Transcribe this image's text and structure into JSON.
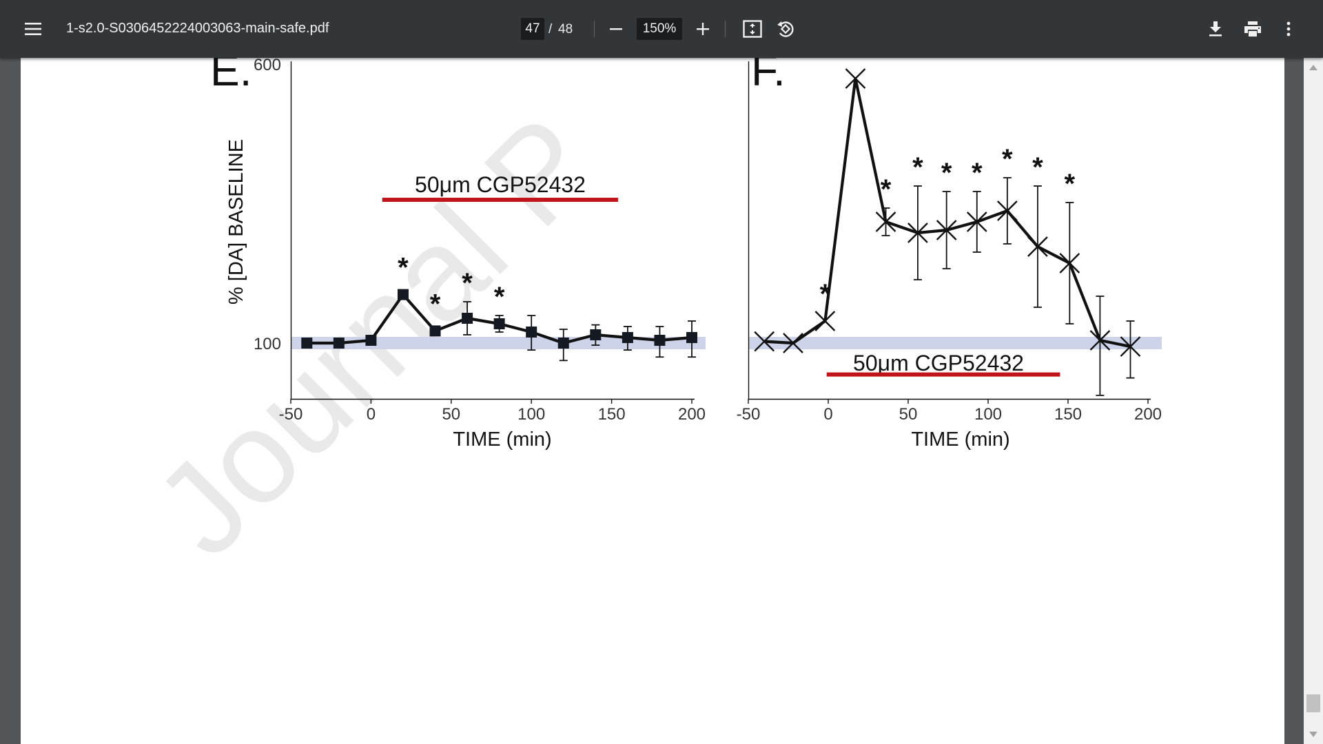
{
  "toolbar": {
    "title": "1-s2.0-S0306452224003063-main-safe.pdf",
    "current_page": "47",
    "page_separator": "/",
    "total_pages": "48",
    "zoom": "150%",
    "icons": {
      "menu": "menu-icon",
      "zoom_out": "minus-icon",
      "zoom_in": "plus-icon",
      "fit": "fit-to-page-icon",
      "rotate": "rotate-icon",
      "download": "download-icon",
      "print": "print-icon",
      "more": "more-vert-icon"
    }
  },
  "figure": {
    "watermark": "Journal P",
    "colors": {
      "line": "#111111",
      "baseline_band": "#cdd4ea",
      "drug_bar": "#c0161b",
      "axis": "#111111"
    }
  },
  "chart_data": [
    {
      "type": "line",
      "panel_label": "E.",
      "title": "",
      "xlabel": "TIME (min)",
      "ylabel": "% [DA] BASELINE",
      "xlim": [
        -50,
        200
      ],
      "ylim": [
        20,
        600
      ],
      "x_ticks": [
        "-50",
        "0",
        "50",
        "100",
        "150",
        "200"
      ],
      "y_ticks": [
        "100",
        "600"
      ],
      "marker": "square",
      "baseline_value": 100,
      "annotation": {
        "text": "50μm CGP52432",
        "x_start": 7,
        "x_end": 154,
        "y_value": 360
      },
      "series": [
        {
          "x": [
            -40,
            -20,
            0,
            20,
            40,
            60,
            80,
            100,
            120,
            140,
            160,
            180,
            200
          ],
          "y": [
            100,
            100,
            105,
            188,
            122,
            145,
            135,
            120,
            100,
            115,
            110,
            105,
            110
          ],
          "err": [
            0,
            0,
            0,
            0,
            0,
            30,
            15,
            30,
            25,
            18,
            20,
            25,
            30
          ],
          "significant": [
            20,
            40,
            60,
            80
          ]
        }
      ],
      "significance_marker": "*"
    },
    {
      "type": "line",
      "panel_label": "F.",
      "title": "",
      "xlabel": "TIME (min)",
      "ylabel": "",
      "xlim": [
        -50,
        200
      ],
      "ylim": [
        20,
        600
      ],
      "x_ticks": [
        "-50",
        "0",
        "50",
        "100",
        "150",
        "200"
      ],
      "y_ticks": [],
      "marker": "x",
      "baseline_value": 100,
      "annotation": {
        "text": "50μm CGP52432",
        "x_start": -1,
        "x_end": 145,
        "y_value": 55
      },
      "series": [
        {
          "x": [
            -40,
            -22,
            -2,
            17,
            36,
            56,
            74,
            93,
            112,
            131,
            151,
            170,
            189
          ],
          "y": [
            103,
            100,
            140,
            580,
            320,
            300,
            305,
            320,
            340,
            275,
            245,
            105,
            95
          ],
          "err": [
            0,
            0,
            0,
            0,
            25,
            85,
            70,
            55,
            60,
            110,
            110,
            80,
            45
          ],
          "significant": [
            -2,
            36,
            56,
            74,
            93,
            112,
            131,
            151
          ]
        }
      ],
      "significance_marker": "*"
    }
  ]
}
